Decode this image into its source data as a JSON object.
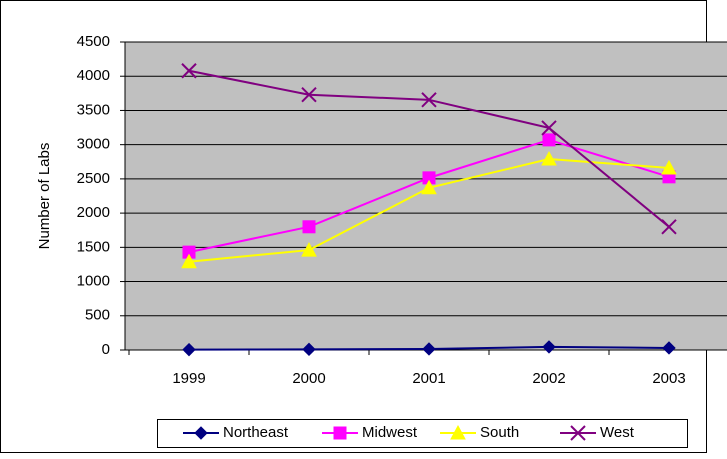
{
  "chart_data": {
    "type": "line",
    "y_label": "Number of Labs",
    "categories": [
      "1999",
      "2000",
      "2001",
      "2002",
      "2003"
    ],
    "series": [
      {
        "name": "Northeast",
        "color": "#000080",
        "marker": "diamond",
        "values": [
          5,
          10,
          15,
          45,
          30
        ]
      },
      {
        "name": "Midwest",
        "color": "#ff00ff",
        "marker": "square",
        "values": [
          1430,
          1800,
          2515,
          3070,
          2530
        ]
      },
      {
        "name": "South",
        "color": "#ffff00",
        "marker": "triangle",
        "values": [
          1290,
          1460,
          2370,
          2790,
          2660
        ]
      },
      {
        "name": "West",
        "color": "#800080",
        "marker": "x",
        "values": [
          4080,
          3730,
          3655,
          3245,
          1800
        ]
      }
    ],
    "ylim": [
      0,
      4500
    ],
    "yticks": [
      0,
      500,
      1000,
      1500,
      2000,
      2500,
      3000,
      3500,
      4000,
      4500
    ],
    "grid": true,
    "legend": "bottom"
  }
}
